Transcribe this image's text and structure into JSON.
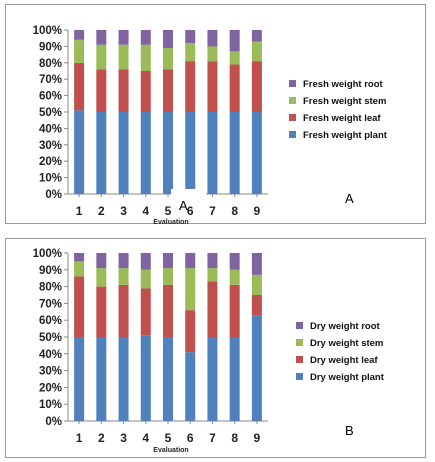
{
  "chart_data": [
    {
      "type": "bar",
      "stacked": true,
      "panel_label": "A",
      "overlay_label": "A",
      "xlabel": "Evaluation",
      "ylabel": "",
      "categories": [
        "1",
        "2",
        "3",
        "4",
        "5",
        "6",
        "7",
        "8",
        "9"
      ],
      "ytick_labels": [
        "0%",
        "10%",
        "20%",
        "30%",
        "40%",
        "50%",
        "60%",
        "70%",
        "80%",
        "90%",
        "100%"
      ],
      "ylim": [
        0,
        100
      ],
      "grid": false,
      "legend_position": "right",
      "series": [
        {
          "name": "Fresh weight plant",
          "color": "#4f81bd",
          "values": [
            51,
            50,
            50,
            50,
            50,
            50,
            50,
            50,
            50
          ]
        },
        {
          "name": "Fresh weight leaf",
          "color": "#c0504d",
          "values": [
            29,
            26,
            26,
            25,
            26,
            31,
            31,
            29,
            31
          ]
        },
        {
          "name": "Fresh weight stem",
          "color": "#9bbb59",
          "values": [
            14,
            15,
            15,
            16,
            13,
            11,
            9,
            8,
            12
          ]
        },
        {
          "name": "Fresh weight root",
          "color": "#8064a2",
          "values": [
            6,
            9,
            9,
            9,
            11,
            8,
            10,
            13,
            7
          ]
        }
      ]
    },
    {
      "type": "bar",
      "stacked": true,
      "panel_label": "B",
      "xlabel": "Evaluation",
      "ylabel": "",
      "categories": [
        "1",
        "2",
        "3",
        "4",
        "5",
        "6",
        "7",
        "8",
        "9"
      ],
      "ytick_labels": [
        "0%",
        "10%",
        "20%",
        "30%",
        "40%",
        "50%",
        "60%",
        "70%",
        "80%",
        "90%",
        "100%"
      ],
      "ylim": [
        0,
        100
      ],
      "grid": false,
      "legend_position": "right",
      "series": [
        {
          "name": "Dry weight plant",
          "color": "#4f81bd",
          "values": [
            50,
            50,
            50,
            51,
            50,
            41,
            50,
            50,
            63
          ]
        },
        {
          "name": "Dry weight leaf",
          "color": "#c0504d",
          "values": [
            36,
            30,
            31,
            28,
            31,
            25,
            33,
            31,
            12
          ]
        },
        {
          "name": "Dry weight stem",
          "color": "#9bbb59",
          "values": [
            9,
            11,
            10,
            11,
            10,
            25,
            8,
            9,
            12
          ]
        },
        {
          "name": "Dry weight root",
          "color": "#8064a2",
          "values": [
            5,
            9,
            9,
            10,
            9,
            9,
            9,
            10,
            13
          ]
        }
      ]
    }
  ]
}
